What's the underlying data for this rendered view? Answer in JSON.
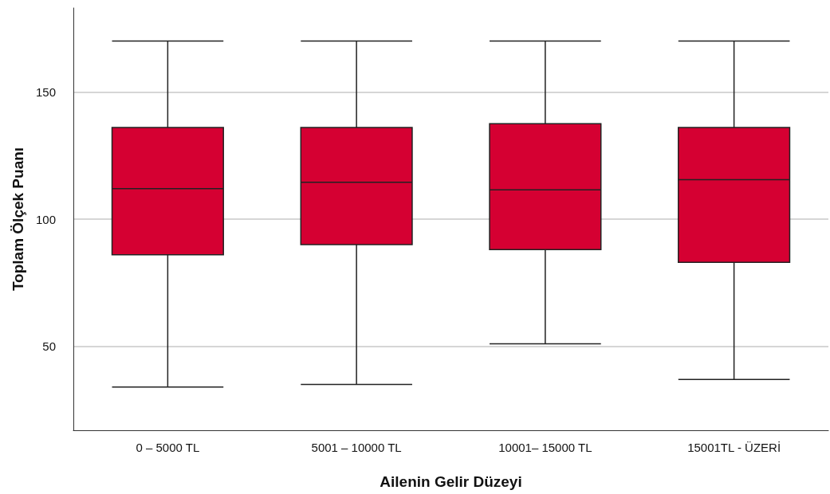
{
  "chart_data": {
    "type": "box",
    "xlabel": "Ailenin Gelir Düzeyi",
    "ylabel": "Toplam Ölçek Puanı",
    "categories": [
      "0 – 5000 TL",
      "5001 – 10000 TL",
      "10001– 15000 TL",
      "15001TL - ÜZERİ"
    ],
    "boxes": [
      {
        "low": 34,
        "q1": 86,
        "median": 112,
        "q3": 136,
        "high": 170
      },
      {
        "low": 35,
        "q1": 90,
        "median": 114.5,
        "q3": 136,
        "high": 170
      },
      {
        "low": 51,
        "q1": 88,
        "median": 111.5,
        "q3": 137.5,
        "high": 170
      },
      {
        "low": 37,
        "q1": 83,
        "median": 115.5,
        "q3": 136,
        "high": 170
      }
    ],
    "color": "#d50032",
    "ylim": [
      17,
      183
    ],
    "yticks": [
      50,
      100,
      150
    ],
    "grid": "y"
  }
}
